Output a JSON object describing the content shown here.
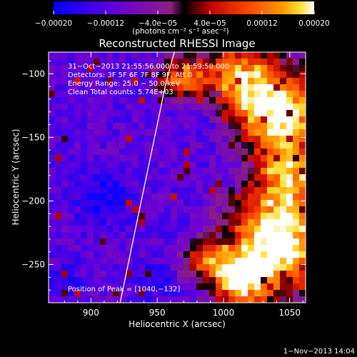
{
  "chart_data": {
    "type": "heatmap",
    "title": "Reconstructed RHESSI Image",
    "xlabel": "Heliocentric X (arcsec)",
    "ylabel": "Heliocentric Y (arcsec)",
    "xlim": [
      868,
      1062
    ],
    "ylim": [
      -280,
      -83
    ],
    "x_ticks": [
      900,
      950,
      1000,
      1050
    ],
    "y_ticks": [
      -100,
      -150,
      -200,
      -250
    ],
    "x_tick_labels": [
      "900",
      "950",
      "1000",
      "1050"
    ],
    "y_tick_labels": [
      "−100",
      "−150",
      "−200",
      "−250"
    ],
    "colorbar": {
      "range": [
        -0.0002,
        0.0002
      ],
      "ticks": [
        -0.0002,
        -0.00012,
        -4e-05,
        4e-05,
        0.00012,
        0.0002
      ],
      "tick_labels": [
        "−0.00020",
        "−0.00012",
        "−4.0e−05",
        "4.0e−05",
        "0.00012",
        "0.00020"
      ],
      "unit_label": "(photons cm⁻² s⁻¹ asec⁻²)",
      "colors": [
        "#0000ff",
        "#6a00d8",
        "#8a2080",
        "#c00000",
        "#ff4800",
        "#ff9a00",
        "#ffe23a",
        "#ffffff"
      ]
    },
    "annotations": [
      "31−Oct−2013 21:55:56.000 to 21:59:50.000",
      "Detectors: 3F 5F 6F 7F 8F 9F, Att 0",
      "Energy Range: 25.0 − 50.0 keV",
      "Clean    Total counts: 5.74E+03"
    ],
    "peak_label": "Position of Peak = [1040,−132]",
    "peak": [
      1040,
      -132
    ],
    "limb_curve": {
      "x": [
        922,
        927,
        935,
        943,
        950,
        956,
        961,
        963
      ],
      "y": [
        -280,
        -255,
        -215,
        -175,
        -140,
        -110,
        -90,
        -83
      ]
    },
    "hot_regions": [
      {
        "x": 1040,
        "y": -132,
        "radius": 22,
        "strength": 1.0
      },
      {
        "x": 968,
        "y": -103,
        "radius": 12,
        "strength": 0.85
      },
      {
        "x": 1008,
        "y": -100,
        "radius": 18,
        "strength": 0.8
      },
      {
        "x": 1040,
        "y": -230,
        "radius": 25,
        "strength": 0.95
      },
      {
        "x": 1012,
        "y": -262,
        "radius": 15,
        "strength": 0.8
      },
      {
        "x": 985,
        "y": -245,
        "radius": 12,
        "strength": 0.6
      },
      {
        "x": 1050,
        "y": -180,
        "radius": 16,
        "strength": 0.6
      }
    ],
    "cold_regions": [
      {
        "x": 910,
        "y": -198,
        "radius": 14,
        "strength": 0.9
      },
      {
        "x": 950,
        "y": -262,
        "radius": 10,
        "strength": 0.7
      },
      {
        "x": 880,
        "y": -265,
        "radius": 10,
        "strength": 0.7
      }
    ]
  },
  "footer": {
    "timestamp": "1−Nov−2013 14:04"
  }
}
